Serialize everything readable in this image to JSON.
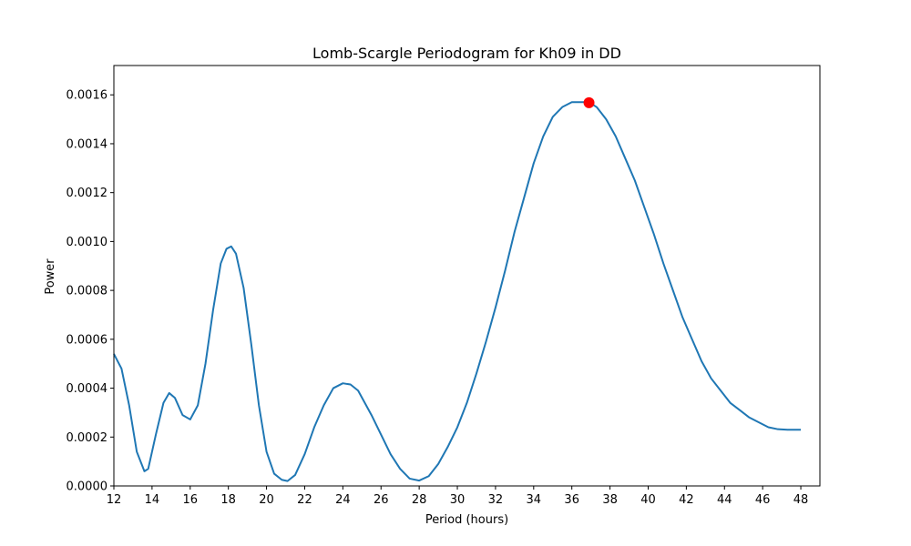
{
  "chart_data": {
    "type": "line",
    "title": "Lomb-Scargle Periodogram for Kh09 in DD",
    "xlabel": "Period (hours)",
    "ylabel": "Power",
    "xlim": [
      12,
      49
    ],
    "ylim": [
      0,
      0.00172
    ],
    "x_ticks": [
      "12",
      "14",
      "16",
      "18",
      "20",
      "22",
      "24",
      "26",
      "28",
      "30",
      "32",
      "34",
      "36",
      "38",
      "40",
      "42",
      "44",
      "46",
      "48"
    ],
    "y_ticks": [
      "0.0000",
      "0.0002",
      "0.0004",
      "0.0006",
      "0.0008",
      "0.0010",
      "0.0012",
      "0.0014",
      "0.0016"
    ],
    "grid": false,
    "series": [
      {
        "color": "#1f77b4",
        "x": [
          12.0,
          12.4,
          12.8,
          13.2,
          13.6,
          13.8,
          14.2,
          14.6,
          14.9,
          15.2,
          15.6,
          16.0,
          16.4,
          16.8,
          17.2,
          17.6,
          17.9,
          18.15,
          18.4,
          18.8,
          19.2,
          19.6,
          20.0,
          20.4,
          20.8,
          21.1,
          21.5,
          22.0,
          22.5,
          23.0,
          23.5,
          24.0,
          24.4,
          24.8,
          25.5,
          26.0,
          26.5,
          27.0,
          27.5,
          28.0,
          28.5,
          29.0,
          29.5,
          30.0,
          30.5,
          31.0,
          31.5,
          32.0,
          32.5,
          33.0,
          33.5,
          34.0,
          34.5,
          35.0,
          35.5,
          36.0,
          36.5,
          36.9,
          37.3,
          37.8,
          38.3,
          38.8,
          39.3,
          39.8,
          40.3,
          40.8,
          41.3,
          41.8,
          42.3,
          42.8,
          43.3,
          43.8,
          44.3,
          44.8,
          45.3,
          45.8,
          46.3,
          46.8,
          47.3,
          47.8,
          48.0
        ],
        "y": [
          0.00054,
          0.00048,
          0.00033,
          0.00014,
          6e-05,
          7e-05,
          0.00021,
          0.00034,
          0.00038,
          0.00036,
          0.00029,
          0.000272,
          0.00033,
          0.0005,
          0.00072,
          0.00091,
          0.00097,
          0.00098,
          0.00095,
          0.00081,
          0.00058,
          0.00033,
          0.00014,
          5e-05,
          2.5e-05,
          2e-05,
          4.5e-05,
          0.00013,
          0.00024,
          0.00033,
          0.0004,
          0.00042,
          0.000415,
          0.00039,
          0.00029,
          0.00021,
          0.00013,
          7e-05,
          3e-05,
          2.2e-05,
          4e-05,
          9e-05,
          0.00016,
          0.00024,
          0.00034,
          0.00046,
          0.00059,
          0.00073,
          0.00088,
          0.00104,
          0.00118,
          0.00132,
          0.00143,
          0.00151,
          0.00155,
          0.00157,
          0.00157,
          0.00157,
          0.00155,
          0.0015,
          0.00143,
          0.00134,
          0.00125,
          0.00114,
          0.00103,
          0.00091,
          0.0008,
          0.00069,
          0.0006,
          0.00051,
          0.00044,
          0.00039,
          0.00034,
          0.00031,
          0.00028,
          0.00026,
          0.00024,
          0.000232,
          0.00023,
          0.00023,
          0.00023
        ]
      }
    ],
    "peak": {
      "x": 36.9,
      "y": 0.001568,
      "color": "#ff0000"
    }
  }
}
